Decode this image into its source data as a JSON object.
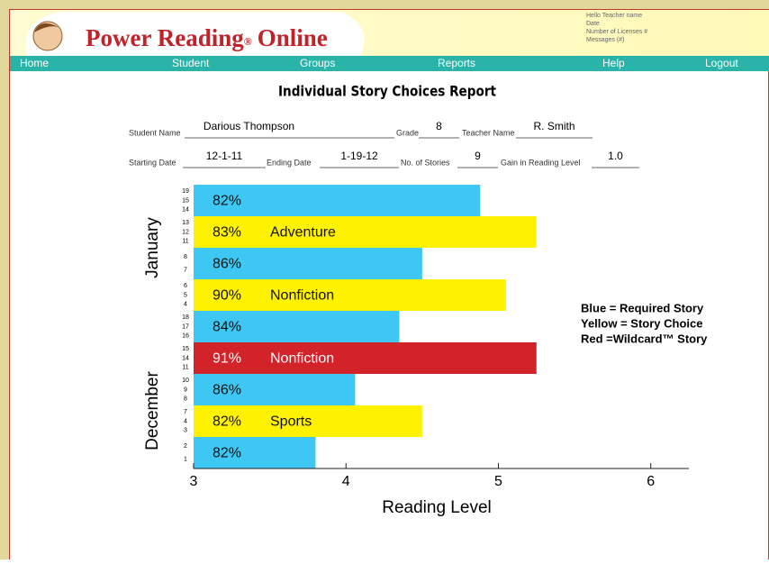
{
  "header": {
    "brand": {
      "name": "Power Reading",
      "mark": "®",
      "suffix": "Online"
    },
    "info": [
      "Hello Teacher name",
      "Date",
      "Number of Licenses #",
      "Messages (#)"
    ]
  },
  "nav": [
    "Home",
    "Student",
    "Groups",
    "Reports",
    "Help",
    "Logout"
  ],
  "report": {
    "title": "Individual Story Choices Report",
    "fields": [
      {
        "label": "Student Name",
        "value": "Darious Thompson"
      },
      {
        "label": "Grade",
        "value": "8"
      },
      {
        "label": "Teacher Name",
        "value": "R. Smith"
      },
      {
        "label": "Starting Date",
        "value": "12-1-11"
      },
      {
        "label": "Ending Date",
        "value": "1-19-12"
      },
      {
        "label": "No. of Stories",
        "value": "9"
      },
      {
        "label": "Gain in Reading Level",
        "value": "1.0"
      }
    ]
  },
  "chart_data": {
    "type": "bar",
    "orientation": "horizontal",
    "x_label": "Reading Level",
    "xlim": [
      3,
      6.25
    ],
    "xticks": [
      3,
      4,
      5,
      6
    ],
    "groups": [
      "January",
      "December"
    ],
    "values": [
      4.88,
      5.25,
      4.5,
      5.05,
      4.35,
      5.25,
      4.06,
      4.5,
      3.8
    ],
    "colors": [
      "#3ec7f2",
      "#fff200",
      "#3ec7f2",
      "#fff200",
      "#3ec7f2",
      "#d2232a",
      "#3ec7f2",
      "#fff200",
      "#3ec7f2"
    ],
    "scores": [
      "82%",
      "83%",
      "86%",
      "90%",
      "84%",
      "91%",
      "86%",
      "82%",
      "82%"
    ],
    "genres": [
      null,
      "Adventure",
      null,
      "Nonfiction",
      null,
      "Nonfiction",
      null,
      "Sports",
      null
    ],
    "lessons": [
      [
        19,
        15,
        14
      ],
      [
        13,
        12,
        11
      ],
      [
        8,
        7
      ],
      [
        6,
        5,
        4
      ],
      [
        18,
        17,
        16
      ],
      [
        15,
        14,
        11
      ],
      [
        10,
        9,
        8
      ],
      [
        7,
        4,
        3
      ],
      [
        2,
        1
      ]
    ],
    "legend": [
      "Blue = Required Story",
      "Yellow = Story Choice",
      "Red =Wildcard™ Story"
    ]
  }
}
